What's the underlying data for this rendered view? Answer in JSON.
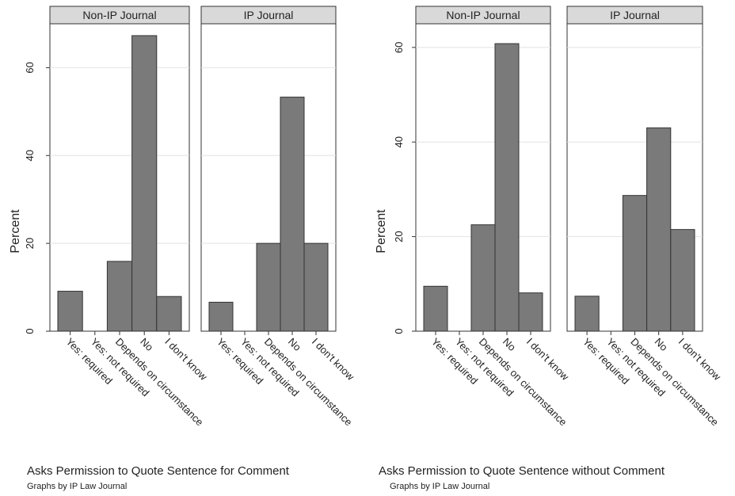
{
  "chart_data": [
    {
      "type": "bar",
      "title": "Asks Permission to Quote Sentence for Comment",
      "note": "Graphs by IP Law Journal",
      "ylabel": "Percent",
      "ylim": [
        0,
        70
      ],
      "yticks": [
        0,
        20,
        40,
        60
      ],
      "categories": [
        "Yes: required",
        "Yes: not required",
        "Depends on circumstance",
        "No",
        "I don't know"
      ],
      "panels": [
        {
          "name": "Non-IP Journal",
          "values": [
            9.1,
            0,
            15.9,
            67.3,
            7.9
          ]
        },
        {
          "name": "IP Journal",
          "values": [
            6.6,
            0,
            20.0,
            53.3,
            20.0
          ]
        }
      ],
      "grid": true,
      "bar_color": "#7a7a7a",
      "strip_color": "#d9d9d9"
    },
    {
      "type": "bar",
      "title": "Asks Permission to Quote Sentence without Comment",
      "note": "Graphs by IP Law Journal",
      "ylabel": "Percent",
      "ylim": [
        0,
        65
      ],
      "yticks": [
        0,
        20,
        40,
        60
      ],
      "categories": [
        "Yes: required",
        "Yes: not required",
        "Depends on circumstance",
        "No",
        "I don't know"
      ],
      "panels": [
        {
          "name": "Non-IP Journal",
          "values": [
            9.5,
            0,
            22.5,
            60.8,
            8.1
          ]
        },
        {
          "name": "IP Journal",
          "values": [
            7.4,
            0,
            28.7,
            43.0,
            21.5
          ]
        }
      ],
      "grid": true,
      "bar_color": "#7a7a7a",
      "strip_color": "#d9d9d9"
    }
  ]
}
